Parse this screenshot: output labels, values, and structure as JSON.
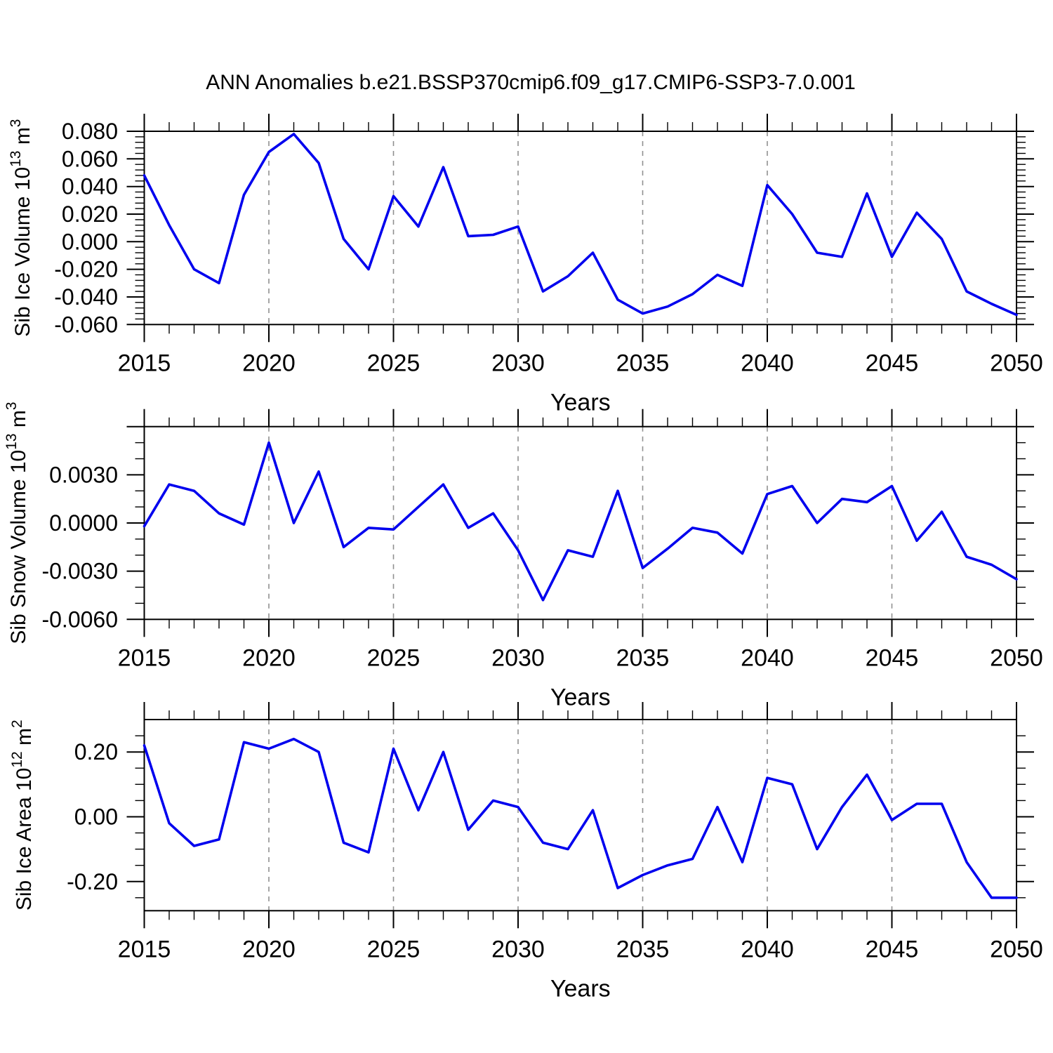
{
  "title": "ANN Anomalies b.e21.BSSP370cmip6.f09_g17.CMIP6-SSP3-7.0.001",
  "x_axis": {
    "label": "Years",
    "tick_labels": [
      "2015",
      "2020",
      "2025",
      "2030",
      "2035",
      "2040",
      "2045",
      "2050"
    ],
    "year_start": 2015,
    "year_end": 2050,
    "major_step": 5,
    "minor_step": 1,
    "grid_years": [
      2020,
      2025,
      2030,
      2035,
      2040,
      2045
    ]
  },
  "style": {
    "line_color": "#0000ee",
    "grid_color": "#909090",
    "axis_color": "#000000",
    "background": "#ffffff"
  },
  "chart_data": [
    {
      "type": "line",
      "name": "sib-ice-volume",
      "ylabel_text": "Sib Ice Volume 10^13 m^3",
      "ylabel_parts": [
        [
          "Sib Ice Volume 10",
          0
        ],
        [
          "13",
          1
        ],
        [
          " m",
          0
        ],
        [
          "3",
          1
        ]
      ],
      "xlabel": "Years",
      "years_start": 2015,
      "years_step": 1,
      "values": [
        0.048,
        0.012,
        -0.02,
        -0.03,
        0.034,
        0.065,
        0.078,
        0.057,
        0.002,
        -0.02,
        0.033,
        0.011,
        0.054,
        0.004,
        0.005,
        0.011,
        -0.036,
        -0.025,
        -0.008,
        -0.042,
        -0.052,
        -0.047,
        -0.038,
        -0.024,
        -0.032,
        0.041,
        0.02,
        -0.008,
        -0.011,
        0.035,
        -0.011,
        0.021,
        0.002,
        -0.036,
        -0.045,
        -0.053
      ],
      "y_axis": {
        "limits": [
          -0.06,
          0.08
        ],
        "labels": [
          {
            "value": 0.08,
            "text": "0.080"
          },
          {
            "value": 0.06,
            "text": "0.060"
          },
          {
            "value": 0.04,
            "text": "0.040"
          },
          {
            "value": 0.02,
            "text": "0.020"
          },
          {
            "value": 0.0,
            "text": "0.000"
          },
          {
            "value": -0.02,
            "text": "-0.020"
          },
          {
            "value": -0.04,
            "text": "-0.040"
          },
          {
            "value": -0.06,
            "text": "-0.060"
          }
        ],
        "major_values": [
          0.08,
          0.06,
          0.04,
          0.02,
          0.0,
          -0.02,
          -0.04,
          -0.06
        ],
        "minor_step": 0.004
      }
    },
    {
      "type": "line",
      "name": "sib-snow-volume",
      "ylabel_text": "Sib Snow Volume 10^13 m^3",
      "ylabel_parts": [
        [
          "Sib Snow Volume 10",
          0
        ],
        [
          "13",
          1
        ],
        [
          " m",
          0
        ],
        [
          "3",
          1
        ]
      ],
      "xlabel": "Years",
      "years_start": 2015,
      "years_step": 1,
      "values": [
        -0.0002,
        0.0024,
        0.002,
        0.0006,
        -0.0001,
        0.005,
        0.0,
        0.0032,
        -0.0015,
        -0.0003,
        -0.0004,
        0.001,
        0.0024,
        -0.0003,
        0.0006,
        -0.0017,
        -0.0048,
        -0.0017,
        -0.0021,
        0.002,
        -0.0028,
        -0.0016,
        -0.0003,
        -0.0006,
        -0.0019,
        0.0018,
        0.0023,
        0.0,
        0.0015,
        0.0013,
        0.0023,
        -0.0011,
        0.0007,
        -0.0021,
        -0.0026,
        -0.0035
      ],
      "y_axis": {
        "limits": [
          -0.006,
          0.006
        ],
        "labels": [
          {
            "value": 0.003,
            "text": "0.0030"
          },
          {
            "value": 0.0,
            "text": "0.0000"
          },
          {
            "value": -0.003,
            "text": "-0.0030"
          },
          {
            "value": -0.006,
            "text": "-0.0060"
          }
        ],
        "major_values": [
          0.006,
          0.003,
          0.0,
          -0.003,
          -0.006
        ],
        "minor_step": 0.001
      }
    },
    {
      "type": "line",
      "name": "sib-ice-area",
      "ylabel_text": "Sib Ice Area 10^12 m^2",
      "ylabel_parts": [
        [
          "Sib Ice Area 10",
          0
        ],
        [
          "12",
          1
        ],
        [
          " m",
          0
        ],
        [
          "2",
          1
        ]
      ],
      "xlabel": "Years",
      "years_start": 2015,
      "years_step": 1,
      "values": [
        0.22,
        -0.02,
        -0.09,
        -0.07,
        0.23,
        0.21,
        0.24,
        0.2,
        -0.08,
        -0.11,
        0.21,
        0.02,
        0.2,
        -0.04,
        0.05,
        0.03,
        -0.08,
        -0.1,
        0.02,
        -0.22,
        -0.18,
        -0.15,
        -0.13,
        0.03,
        -0.14,
        0.12,
        0.1,
        -0.1,
        0.03,
        0.13,
        -0.01,
        0.04,
        0.04,
        -0.14,
        -0.25,
        -0.25
      ],
      "y_axis": {
        "limits": [
          -0.29,
          0.3
        ],
        "labels": [
          {
            "value": 0.2,
            "text": "0.20"
          },
          {
            "value": 0.0,
            "text": "0.00"
          },
          {
            "value": -0.2,
            "text": "-0.20"
          }
        ],
        "major_values": [
          0.2,
          0.0,
          -0.2
        ],
        "minor_step": 0.05
      }
    }
  ]
}
